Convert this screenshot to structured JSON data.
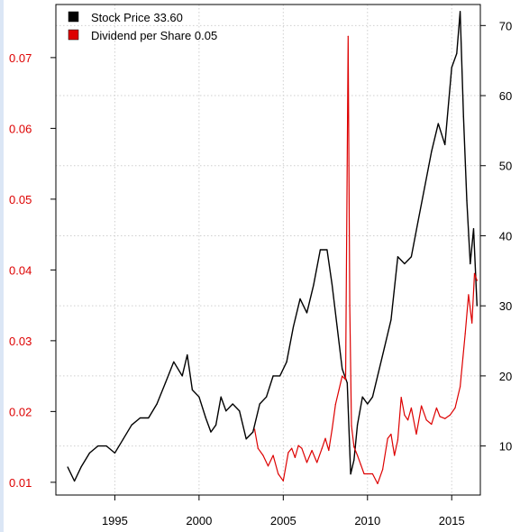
{
  "chart_data": {
    "type": "line",
    "title": "",
    "xlabel": "",
    "ylabel_left": "",
    "ylabel_right": "",
    "grid": true,
    "legend_position": "top-left",
    "x_range": [
      1991.5,
      2016.7
    ],
    "x_ticks": [
      1995,
      2000,
      2005,
      2010,
      2015
    ],
    "x_tick_labels": [
      "1995",
      "2000",
      "2005",
      "2010",
      "2015"
    ],
    "y_left_range": [
      0.0082,
      0.0775
    ],
    "y_left_ticks": [
      0.01,
      0.02,
      0.03,
      0.04,
      0.05,
      0.06,
      0.07
    ],
    "y_left_tick_labels": [
      "0.01",
      "0.02",
      "0.03",
      "0.04",
      "0.05",
      "0.06",
      "0.07"
    ],
    "y_right_range": [
      3,
      73
    ],
    "y_right_ticks": [
      10,
      20,
      30,
      40,
      50,
      60,
      70
    ],
    "y_right_tick_labels": [
      "10",
      "20",
      "30",
      "40",
      "50",
      "60",
      "70"
    ],
    "legend": [
      {
        "label": "Stock Price 33.60",
        "color": "#000000"
      },
      {
        "label": "Dividend per Share  0.05",
        "color": "#dd0000"
      }
    ],
    "series": [
      {
        "axis": "right",
        "color": "#000000",
        "x": [
          1992.2,
          1992.6,
          1993.0,
          1993.5,
          1994.0,
          1994.5,
          1995.0,
          1995.5,
          1996.0,
          1996.5,
          1997.0,
          1997.5,
          1998.0,
          1998.5,
          1999.0,
          1999.3,
          1999.6,
          2000.0,
          2000.4,
          2000.7,
          2001.0,
          2001.3,
          2001.6,
          2002.0,
          2002.4,
          2002.8,
          2003.2,
          2003.6,
          2004.0,
          2004.4,
          2004.8,
          2005.2,
          2005.6,
          2006.0,
          2006.4,
          2006.8,
          2007.2,
          2007.6,
          2007.9,
          2008.2,
          2008.5,
          2008.8,
          2009.0,
          2009.2,
          2009.4,
          2009.7,
          2010.0,
          2010.3,
          2010.6,
          2011.0,
          2011.4,
          2011.8,
          2012.2,
          2012.6,
          2013.0,
          2013.4,
          2013.8,
          2014.2,
          2014.6,
          2015.0,
          2015.3,
          2015.5,
          2015.7,
          2015.9,
          2016.1,
          2016.3,
          2016.5
        ],
        "values": [
          7,
          5,
          7,
          9,
          10,
          10,
          9,
          11,
          13,
          14,
          14,
          16,
          19,
          22,
          20,
          23,
          18,
          17,
          14,
          12,
          13,
          17,
          15,
          16,
          15,
          11,
          12,
          16,
          17,
          20,
          20,
          22,
          27,
          31,
          29,
          33,
          38,
          38,
          33,
          27,
          21,
          19,
          6,
          8,
          13,
          17,
          16,
          17,
          20,
          24,
          28,
          37,
          36,
          37,
          42,
          47,
          52,
          56,
          53,
          64,
          66,
          72,
          57,
          45,
          36,
          41,
          30
        ]
      },
      {
        "axis": "left",
        "color": "#dd0000",
        "x": [
          2003.3,
          2003.5,
          2003.8,
          2004.1,
          2004.4,
          2004.7,
          2005.0,
          2005.3,
          2005.5,
          2005.7,
          2005.9,
          2006.1,
          2006.4,
          2006.7,
          2007.0,
          2007.3,
          2007.5,
          2007.7,
          2007.9,
          2008.1,
          2008.3,
          2008.5,
          2008.7,
          2008.85,
          2008.95,
          2009.05,
          2009.2,
          2009.4,
          2009.6,
          2009.8,
          2010.0,
          2010.3,
          2010.6,
          2010.9,
          2011.2,
          2011.4,
          2011.6,
          2011.8,
          2012.0,
          2012.2,
          2012.4,
          2012.6,
          2012.9,
          2013.2,
          2013.5,
          2013.8,
          2014.1,
          2014.3,
          2014.6,
          2014.9,
          2015.2,
          2015.5,
          2015.8,
          2016.0,
          2016.2,
          2016.35,
          2016.5
        ],
        "values": [
          0.0175,
          0.0148,
          0.0138,
          0.0123,
          0.0138,
          0.0112,
          0.0102,
          0.0142,
          0.0148,
          0.0135,
          0.0152,
          0.0148,
          0.0128,
          0.0145,
          0.0128,
          0.0148,
          0.0162,
          0.0145,
          0.0175,
          0.021,
          0.023,
          0.025,
          0.0245,
          0.073,
          0.035,
          0.018,
          0.015,
          0.0138,
          0.0125,
          0.0112,
          0.0112,
          0.0112,
          0.0098,
          0.0118,
          0.0162,
          0.0168,
          0.0138,
          0.016,
          0.022,
          0.0195,
          0.0188,
          0.0205,
          0.0168,
          0.0208,
          0.0188,
          0.0182,
          0.0205,
          0.0193,
          0.019,
          0.0195,
          0.0205,
          0.0235,
          0.031,
          0.0365,
          0.0325,
          0.0395,
          0.0385
        ]
      }
    ]
  }
}
